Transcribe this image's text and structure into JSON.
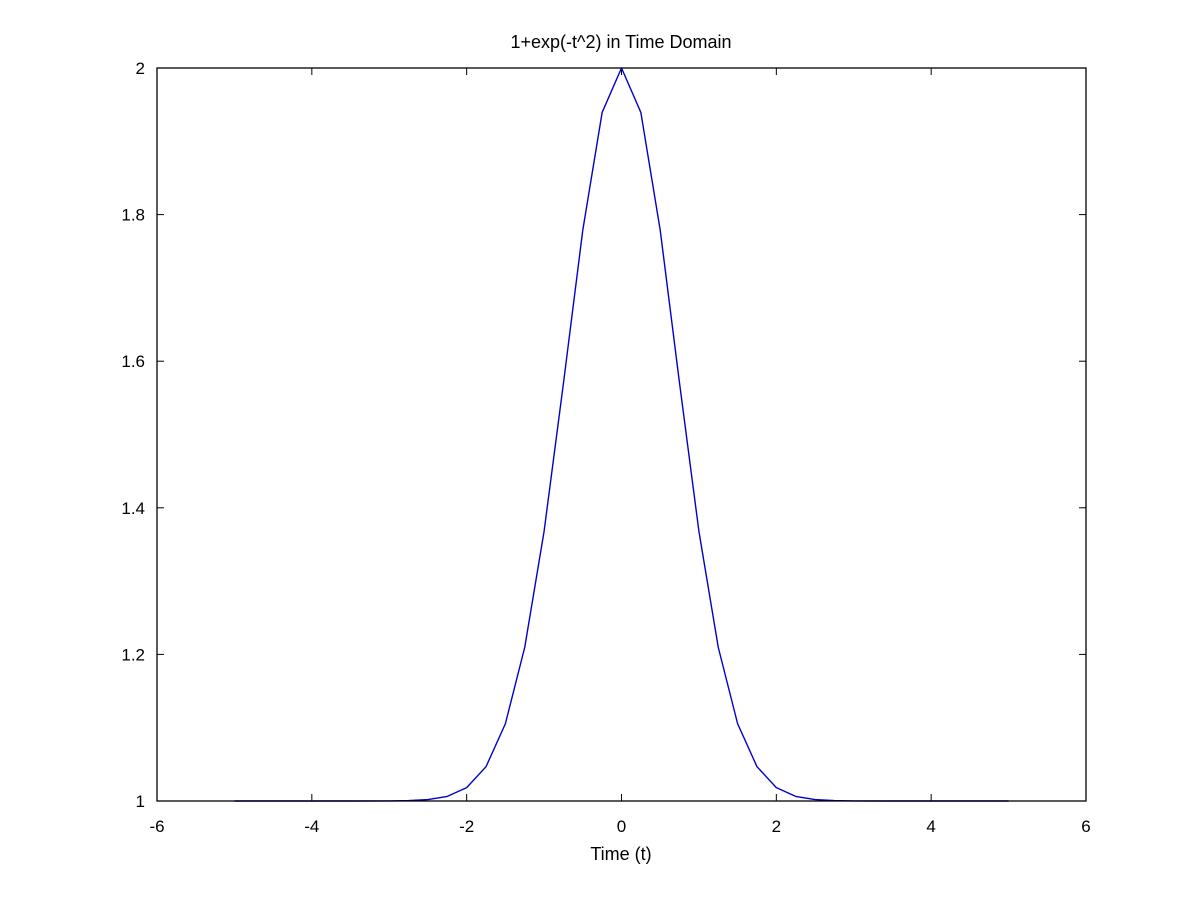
{
  "chart_data": {
    "type": "line",
    "title": "1+exp(-t^2) in Time Domain",
    "xlabel": "Time (t)",
    "ylabel": "",
    "xlim": [
      -6,
      6
    ],
    "ylim": [
      1,
      2
    ],
    "xticks": [
      -6,
      -4,
      -2,
      0,
      2,
      4,
      6
    ],
    "yticks": [
      1,
      1.2,
      1.4,
      1.6,
      1.8,
      2
    ],
    "xtick_labels": [
      "-6",
      "-4",
      "-2",
      "0",
      "2",
      "4",
      "6"
    ],
    "ytick_labels": [
      "1",
      "1.2",
      "1.4",
      "1.6",
      "1.8",
      "2"
    ],
    "grid": false,
    "legend": "none",
    "series": [
      {
        "color": "#0000cc",
        "x": [
          -5,
          -4.5,
          -4,
          -3.5,
          -3,
          -2.75,
          -2.5,
          -2.25,
          -2,
          -1.75,
          -1.5,
          -1.25,
          -1,
          -0.75,
          -0.5,
          -0.25,
          0,
          0.25,
          0.5,
          0.75,
          1,
          1.25,
          1.5,
          1.75,
          2,
          2.25,
          2.5,
          2.75,
          3,
          3.5,
          4,
          4.5,
          5
        ],
        "y": [
          1.0,
          1.0,
          1.0,
          1.0,
          1.0001,
          1.0005,
          1.0019,
          1.0063,
          1.0183,
          1.0468,
          1.1054,
          1.2096,
          1.3679,
          1.5698,
          1.7788,
          1.9394,
          2.0,
          1.9394,
          1.7788,
          1.5698,
          1.3679,
          1.2096,
          1.1054,
          1.0468,
          1.0183,
          1.0063,
          1.0019,
          1.0005,
          1.0001,
          1.0,
          1.0,
          1.0,
          1.0
        ]
      }
    ]
  }
}
